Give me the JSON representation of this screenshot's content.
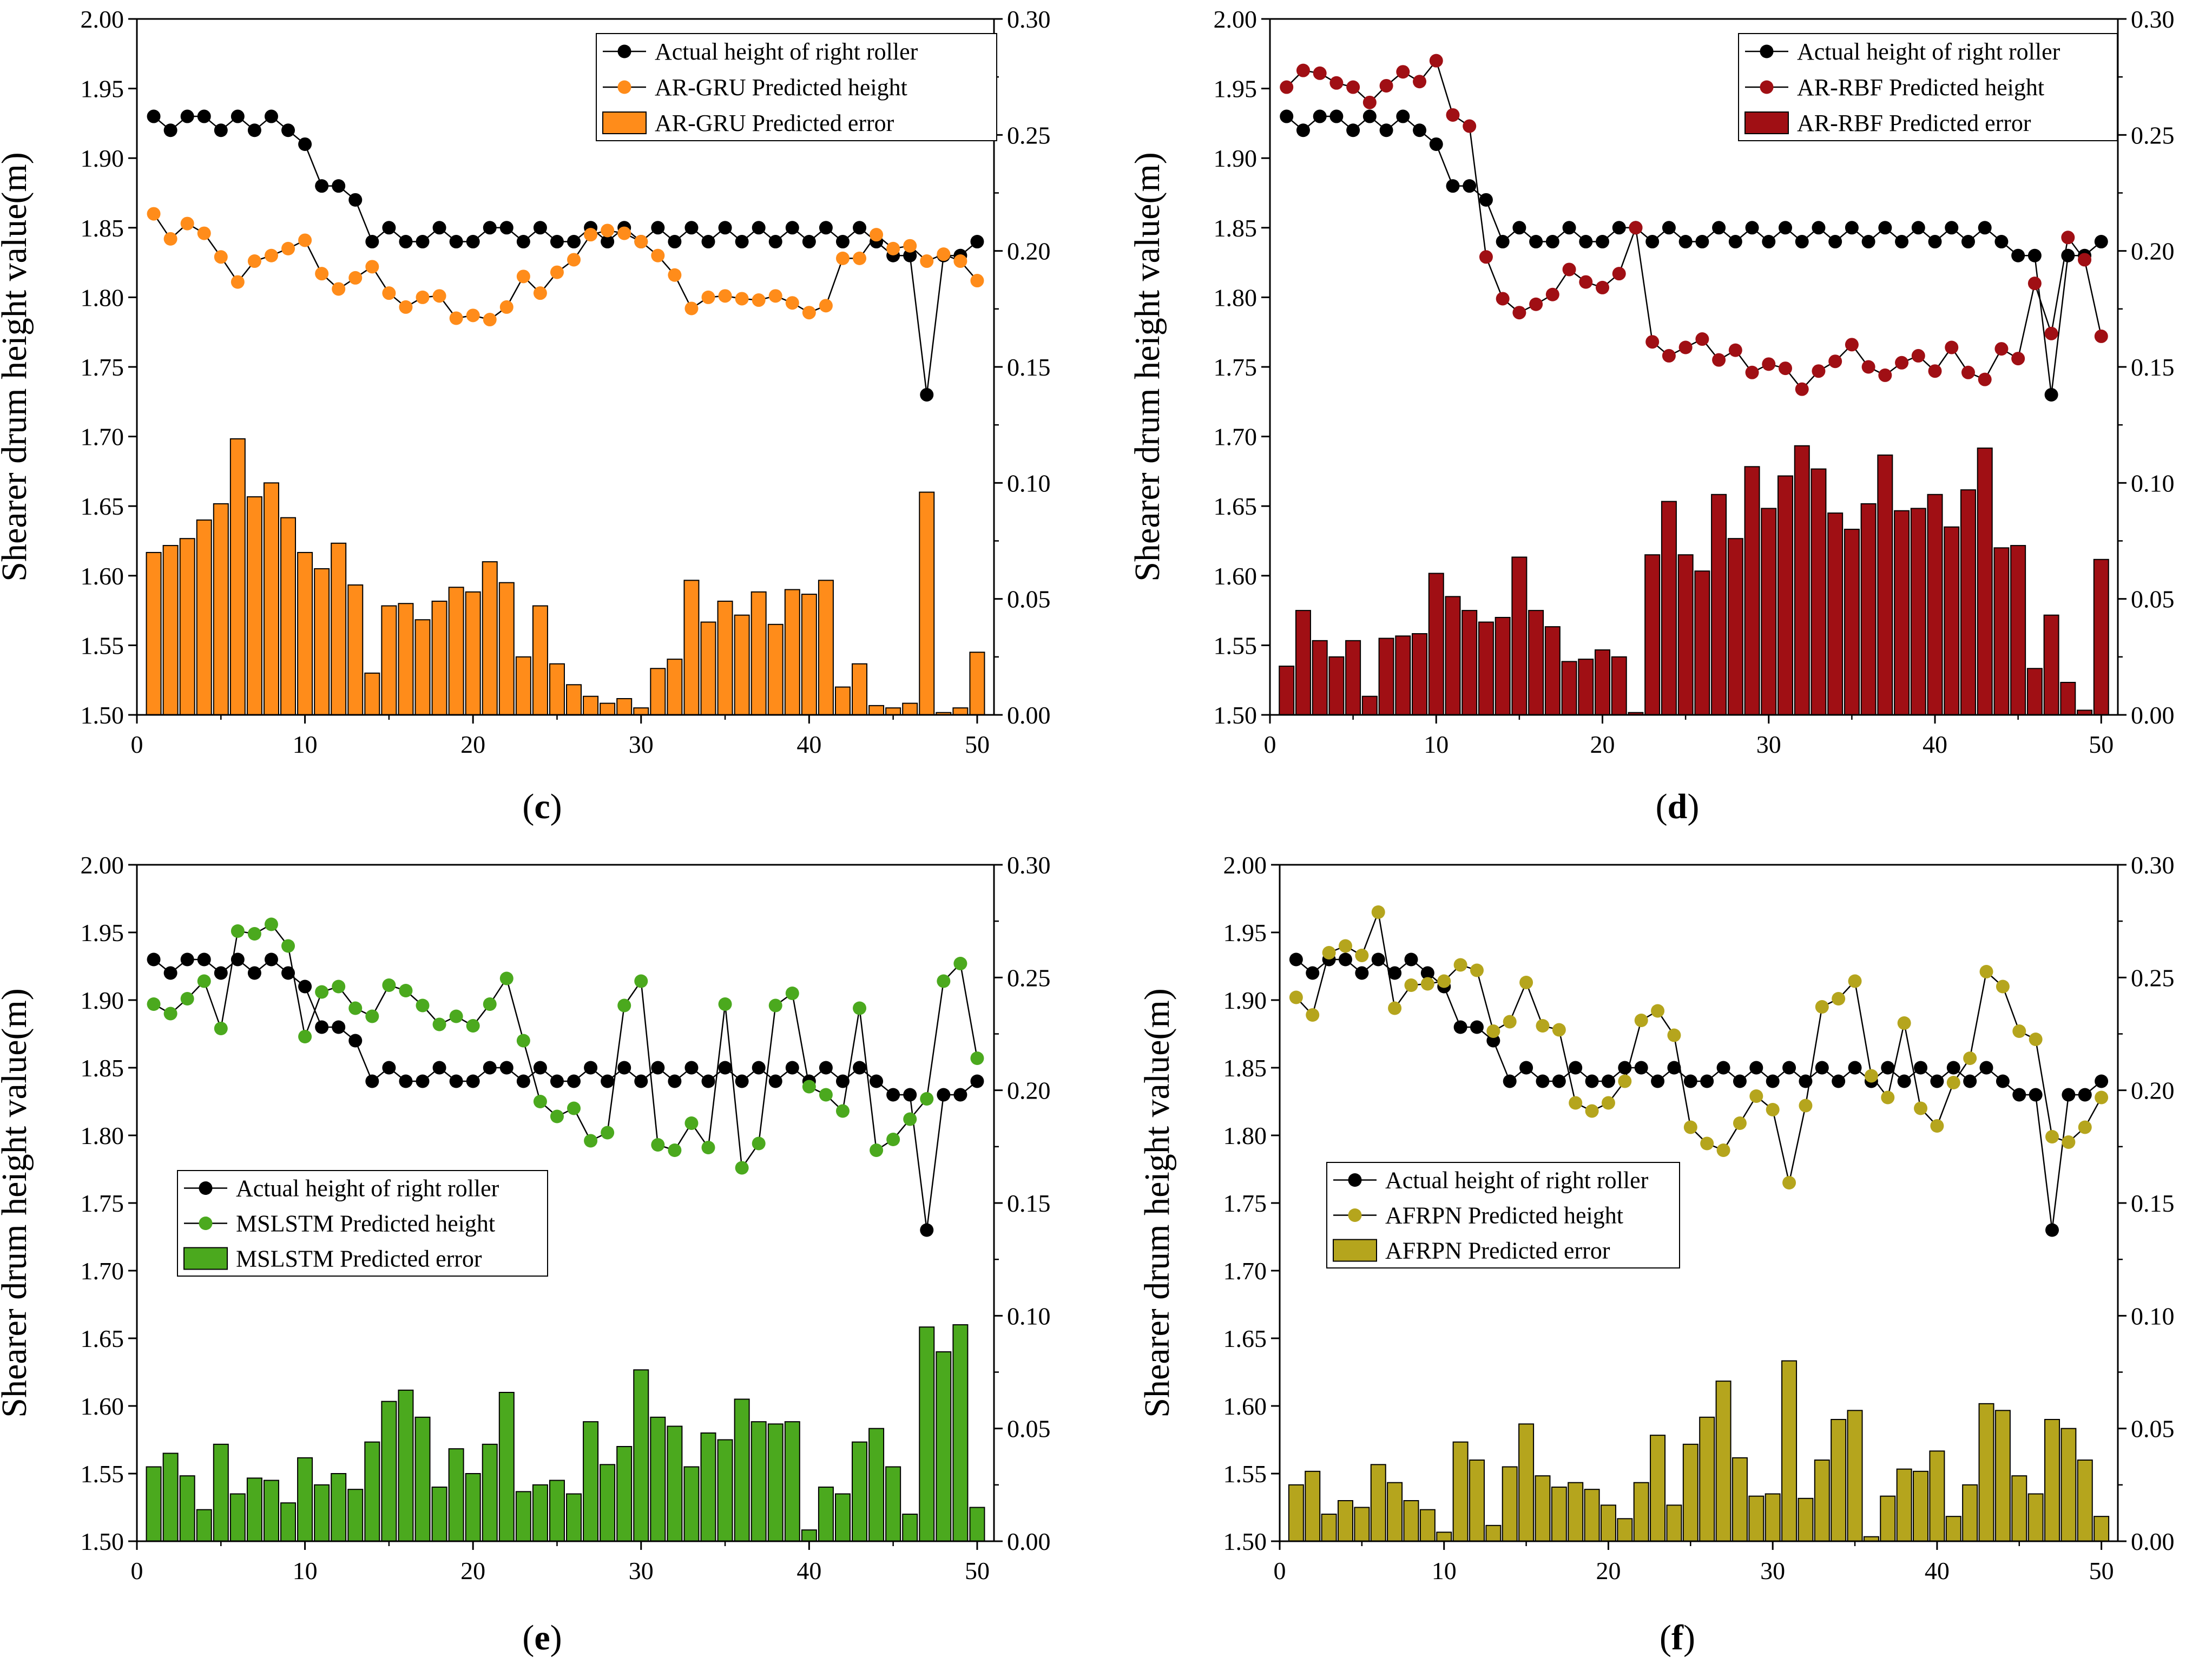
{
  "chart_data": [
    {
      "panel": "(c)",
      "type": "bar+line",
      "ylabel": "Shearer drum height value(m)",
      "x": [
        1,
        2,
        3,
        4,
        5,
        6,
        7,
        8,
        9,
        10,
        11,
        12,
        13,
        14,
        15,
        16,
        17,
        18,
        19,
        20,
        21,
        22,
        23,
        24,
        25,
        26,
        27,
        28,
        29,
        30,
        31,
        32,
        33,
        34,
        35,
        36,
        37,
        38,
        39,
        40,
        41,
        42,
        43,
        44,
        45,
        46,
        47,
        48,
        49,
        50
      ],
      "xlim": [
        0,
        51
      ],
      "xticks": [
        "0",
        "10",
        "20",
        "30",
        "40",
        "50"
      ],
      "ylim_left": [
        1.5,
        2.0
      ],
      "yticks_left": [
        "1.50",
        "1.55",
        "1.60",
        "1.65",
        "1.70",
        "1.75",
        "1.80",
        "1.85",
        "1.90",
        "1.95",
        "2.00"
      ],
      "ylim_right": [
        0.0,
        0.3
      ],
      "yticks_right": [
        "0.00",
        "0.05",
        "0.10",
        "0.15",
        "0.20",
        "0.25",
        "0.30"
      ],
      "color": "#FF8C1A",
      "legend_position": "top-right",
      "series": [
        {
          "name": "Actual height of right roller",
          "kind": "line",
          "axis": "left",
          "values": [
            1.93,
            1.92,
            1.93,
            1.93,
            1.92,
            1.93,
            1.92,
            1.93,
            1.92,
            1.91,
            1.88,
            1.88,
            1.87,
            1.84,
            1.85,
            1.84,
            1.84,
            1.85,
            1.84,
            1.84,
            1.85,
            1.85,
            1.84,
            1.85,
            1.84,
            1.84,
            1.85,
            1.84,
            1.85,
            1.84,
            1.85,
            1.84,
            1.85,
            1.84,
            1.85,
            1.84,
            1.85,
            1.84,
            1.85,
            1.84,
            1.85,
            1.84,
            1.85,
            1.84,
            1.83,
            1.83,
            1.73,
            1.83,
            1.83,
            1.84
          ]
        },
        {
          "name": "AR-GRU Predicted height",
          "kind": "line",
          "axis": "left",
          "values": [
            1.86,
            1.842,
            1.853,
            1.846,
            1.829,
            1.811,
            1.826,
            1.83,
            1.835,
            1.841,
            1.817,
            1.806,
            1.814,
            1.822,
            1.803,
            1.793,
            1.8,
            1.801,
            1.785,
            1.787,
            1.784,
            1.793,
            1.815,
            1.803,
            1.818,
            1.827,
            1.845,
            1.848,
            1.846,
            1.84,
            1.83,
            1.816,
            1.792,
            1.8,
            1.801,
            1.799,
            1.798,
            1.801,
            1.796,
            1.789,
            1.794,
            1.828,
            1.828,
            1.845,
            1.835,
            1.837,
            1.826,
            1.831,
            1.826,
            1.812
          ]
        },
        {
          "name": "AR-GRU Predicted error",
          "kind": "bar",
          "axis": "right",
          "values": [
            0.07,
            0.073,
            0.076,
            0.084,
            0.091,
            0.119,
            0.094,
            0.1,
            0.085,
            0.07,
            0.063,
            0.074,
            0.056,
            0.018,
            0.047,
            0.048,
            0.041,
            0.049,
            0.055,
            0.053,
            0.066,
            0.057,
            0.025,
            0.047,
            0.022,
            0.013,
            0.008,
            0.005,
            0.007,
            0.003,
            0.02,
            0.024,
            0.058,
            0.04,
            0.049,
            0.043,
            0.053,
            0.039,
            0.054,
            0.052,
            0.058,
            0.012,
            0.022,
            0.004,
            0.003,
            0.005,
            0.096,
            0.001,
            0.003,
            0.027
          ]
        }
      ]
    },
    {
      "panel": "(d)",
      "type": "bar+line",
      "ylabel": "Shearer drum height value(m)",
      "x": [
        1,
        2,
        3,
        4,
        5,
        6,
        7,
        8,
        9,
        10,
        11,
        12,
        13,
        14,
        15,
        16,
        17,
        18,
        19,
        20,
        21,
        22,
        23,
        24,
        25,
        26,
        27,
        28,
        29,
        30,
        31,
        32,
        33,
        34,
        35,
        36,
        37,
        38,
        39,
        40,
        41,
        42,
        43,
        44,
        45,
        46,
        47,
        48,
        49,
        50
      ],
      "xlim": [
        0,
        51
      ],
      "xticks": [
        "0",
        "10",
        "20",
        "30",
        "40",
        "50"
      ],
      "ylim_left": [
        1.5,
        2.0
      ],
      "yticks_left": [
        "1.50",
        "1.55",
        "1.60",
        "1.65",
        "1.70",
        "1.75",
        "1.80",
        "1.85",
        "1.90",
        "1.95",
        "2.00"
      ],
      "ylim_right": [
        0.0,
        0.3
      ],
      "yticks_right": [
        "0.00",
        "0.05",
        "0.10",
        "0.15",
        "0.20",
        "0.25",
        "0.30"
      ],
      "color": "#A00F14",
      "legend_position": "top-right",
      "series": [
        {
          "name": "Actual height of right roller",
          "kind": "line",
          "axis": "left",
          "values": [
            1.93,
            1.92,
            1.93,
            1.93,
            1.92,
            1.93,
            1.92,
            1.93,
            1.92,
            1.91,
            1.88,
            1.88,
            1.87,
            1.84,
            1.85,
            1.84,
            1.84,
            1.85,
            1.84,
            1.84,
            1.85,
            1.85,
            1.84,
            1.85,
            1.84,
            1.84,
            1.85,
            1.84,
            1.85,
            1.84,
            1.85,
            1.84,
            1.85,
            1.84,
            1.85,
            1.84,
            1.85,
            1.84,
            1.85,
            1.84,
            1.85,
            1.84,
            1.85,
            1.84,
            1.83,
            1.83,
            1.73,
            1.83,
            1.83,
            1.84
          ]
        },
        {
          "name": "AR-RBF Predicted height",
          "kind": "line",
          "axis": "left",
          "values": [
            1.951,
            1.963,
            1.961,
            1.954,
            1.951,
            1.94,
            1.952,
            1.962,
            1.955,
            1.97,
            1.931,
            1.923,
            1.829,
            1.799,
            1.789,
            1.795,
            1.802,
            1.82,
            1.811,
            1.807,
            1.817,
            1.85,
            1.768,
            1.758,
            1.764,
            1.77,
            1.755,
            1.762,
            1.746,
            1.752,
            1.749,
            1.734,
            1.747,
            1.754,
            1.766,
            1.75,
            1.744,
            1.753,
            1.758,
            1.747,
            1.764,
            1.746,
            1.741,
            1.763,
            1.756,
            1.81,
            1.774,
            1.843,
            1.827,
            1.772
          ]
        },
        {
          "name": "AR-RBF Predicted error",
          "kind": "bar",
          "axis": "right",
          "values": [
            0.021,
            0.045,
            0.032,
            0.025,
            0.032,
            0.008,
            0.033,
            0.034,
            0.035,
            0.061,
            0.051,
            0.045,
            0.04,
            0.042,
            0.068,
            0.045,
            0.038,
            0.023,
            0.024,
            0.028,
            0.025,
            0.001,
            0.069,
            0.092,
            0.069,
            0.062,
            0.095,
            0.076,
            0.107,
            0.089,
            0.103,
            0.116,
            0.106,
            0.087,
            0.08,
            0.091,
            0.112,
            0.088,
            0.089,
            0.095,
            0.081,
            0.097,
            0.115,
            0.072,
            0.073,
            0.02,
            0.043,
            0.014,
            0.002,
            0.067
          ]
        }
      ]
    },
    {
      "panel": "(e)",
      "type": "bar+line",
      "ylabel": "Shearer drum height value(m)",
      "x": [
        1,
        2,
        3,
        4,
        5,
        6,
        7,
        8,
        9,
        10,
        11,
        12,
        13,
        14,
        15,
        16,
        17,
        18,
        19,
        20,
        21,
        22,
        23,
        24,
        25,
        26,
        27,
        28,
        29,
        30,
        31,
        32,
        33,
        34,
        35,
        36,
        37,
        38,
        39,
        40,
        41,
        42,
        43,
        44,
        45,
        46,
        47,
        48,
        49,
        50
      ],
      "xlim": [
        0,
        51
      ],
      "xticks": [
        "0",
        "10",
        "20",
        "30",
        "40",
        "50"
      ],
      "ylim_left": [
        1.5,
        2.0
      ],
      "yticks_left": [
        "1.50",
        "1.55",
        "1.60",
        "1.65",
        "1.70",
        "1.75",
        "1.80",
        "1.85",
        "1.90",
        "1.95",
        "2.00"
      ],
      "ylim_right": [
        0.0,
        0.3
      ],
      "yticks_right": [
        "0.00",
        "0.05",
        "0.10",
        "0.15",
        "0.20",
        "0.25",
        "0.30"
      ],
      "color": "#4BA91E",
      "legend_position": "center-left",
      "series": [
        {
          "name": "Actual height of right roller",
          "kind": "line",
          "axis": "left",
          "values": [
            1.93,
            1.92,
            1.93,
            1.93,
            1.92,
            1.93,
            1.92,
            1.93,
            1.92,
            1.91,
            1.88,
            1.88,
            1.87,
            1.84,
            1.85,
            1.84,
            1.84,
            1.85,
            1.84,
            1.84,
            1.85,
            1.85,
            1.84,
            1.85,
            1.84,
            1.84,
            1.85,
            1.84,
            1.85,
            1.84,
            1.85,
            1.84,
            1.85,
            1.84,
            1.85,
            1.84,
            1.85,
            1.84,
            1.85,
            1.84,
            1.85,
            1.84,
            1.85,
            1.84,
            1.83,
            1.83,
            1.73,
            1.83,
            1.83,
            1.84
          ]
        },
        {
          "name": "MSLSTM Predicted height",
          "kind": "line",
          "axis": "left",
          "values": [
            1.897,
            1.89,
            1.901,
            1.914,
            1.879,
            1.951,
            1.949,
            1.956,
            1.94,
            1.873,
            1.906,
            1.91,
            1.894,
            1.888,
            1.911,
            1.907,
            1.896,
            1.882,
            1.888,
            1.881,
            1.897,
            1.916,
            1.87,
            1.825,
            1.814,
            1.82,
            1.796,
            1.802,
            1.896,
            1.914,
            1.793,
            1.789,
            1.809,
            1.791,
            1.897,
            1.776,
            1.794,
            1.896,
            1.905,
            1.836,
            1.83,
            1.818,
            1.894,
            1.789,
            1.797,
            1.812,
            1.827,
            1.914,
            1.927,
            1.857
          ]
        },
        {
          "name": "MSLSTM Predicted error",
          "kind": "bar",
          "axis": "right",
          "values": [
            0.033,
            0.039,
            0.029,
            0.014,
            0.043,
            0.021,
            0.028,
            0.027,
            0.017,
            0.037,
            0.025,
            0.03,
            0.023,
            0.044,
            0.062,
            0.067,
            0.055,
            0.024,
            0.041,
            0.03,
            0.043,
            0.066,
            0.022,
            0.025,
            0.027,
            0.021,
            0.053,
            0.034,
            0.042,
            0.076,
            0.055,
            0.051,
            0.033,
            0.048,
            0.045,
            0.063,
            0.053,
            0.052,
            0.053,
            0.005,
            0.024,
            0.021,
            0.044,
            0.05,
            0.033,
            0.012,
            0.095,
            0.084,
            0.096,
            0.015
          ]
        }
      ]
    },
    {
      "panel": "(f)",
      "type": "bar+line",
      "ylabel": "Shearer drum height value(m)",
      "x": [
        1,
        2,
        3,
        4,
        5,
        6,
        7,
        8,
        9,
        10,
        11,
        12,
        13,
        14,
        15,
        16,
        17,
        18,
        19,
        20,
        21,
        22,
        23,
        24,
        25,
        26,
        27,
        28,
        29,
        30,
        31,
        32,
        33,
        34,
        35,
        36,
        37,
        38,
        39,
        40,
        41,
        42,
        43,
        44,
        45,
        46,
        47,
        48,
        49,
        50
      ],
      "xlim": [
        0,
        51
      ],
      "xticks": [
        "0",
        "10",
        "20",
        "30",
        "40",
        "50"
      ],
      "ylim_left": [
        1.5,
        2.0
      ],
      "yticks_left": [
        "1.50",
        "1.55",
        "1.60",
        "1.65",
        "1.70",
        "1.75",
        "1.80",
        "1.85",
        "1.90",
        "1.95",
        "2.00"
      ],
      "ylim_right": [
        0.0,
        0.3
      ],
      "yticks_right": [
        "0.00",
        "0.05",
        "0.10",
        "0.15",
        "0.20",
        "0.25",
        "0.30"
      ],
      "color": "#B5A51D",
      "legend_position": "center-left",
      "series": [
        {
          "name": "Actual height of right roller",
          "kind": "line",
          "axis": "left",
          "values": [
            1.93,
            1.92,
            1.93,
            1.93,
            1.92,
            1.93,
            1.92,
            1.93,
            1.92,
            1.91,
            1.88,
            1.88,
            1.87,
            1.84,
            1.85,
            1.84,
            1.84,
            1.85,
            1.84,
            1.84,
            1.85,
            1.85,
            1.84,
            1.85,
            1.84,
            1.84,
            1.85,
            1.84,
            1.85,
            1.84,
            1.85,
            1.84,
            1.85,
            1.84,
            1.85,
            1.84,
            1.85,
            1.84,
            1.85,
            1.84,
            1.85,
            1.84,
            1.85,
            1.84,
            1.83,
            1.83,
            1.73,
            1.83,
            1.83,
            1.84
          ]
        },
        {
          "name": "AFRPN Predicted height",
          "kind": "line",
          "axis": "left",
          "values": [
            1.902,
            1.889,
            1.935,
            1.94,
            1.933,
            1.965,
            1.894,
            1.911,
            1.912,
            1.914,
            1.926,
            1.922,
            1.877,
            1.884,
            1.913,
            1.881,
            1.878,
            1.824,
            1.818,
            1.824,
            1.84,
            1.885,
            1.892,
            1.874,
            1.806,
            1.794,
            1.789,
            1.809,
            1.829,
            1.819,
            1.765,
            1.822,
            1.895,
            1.901,
            1.914,
            1.844,
            1.828,
            1.883,
            1.82,
            1.807,
            1.839,
            1.857,
            1.921,
            1.91,
            1.877,
            1.871,
            1.799,
            1.795,
            1.806,
            1.828
          ]
        },
        {
          "name": "AFRPN Predicted error",
          "kind": "bar",
          "axis": "right",
          "values": [
            0.025,
            0.031,
            0.012,
            0.018,
            0.015,
            0.034,
            0.026,
            0.018,
            0.014,
            0.004,
            0.044,
            0.036,
            0.007,
            0.033,
            0.052,
            0.029,
            0.024,
            0.026,
            0.023,
            0.016,
            0.01,
            0.026,
            0.047,
            0.016,
            0.043,
            0.055,
            0.071,
            0.037,
            0.02,
            0.021,
            0.08,
            0.019,
            0.036,
            0.054,
            0.058,
            0.002,
            0.02,
            0.032,
            0.031,
            0.04,
            0.011,
            0.025,
            0.061,
            0.058,
            0.029,
            0.021,
            0.054,
            0.05,
            0.036,
            0.011
          ]
        }
      ]
    }
  ]
}
